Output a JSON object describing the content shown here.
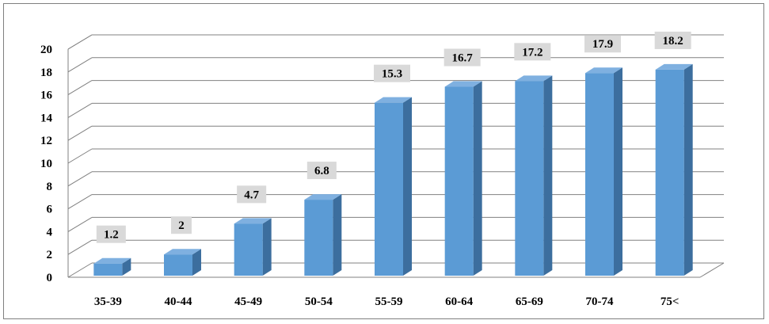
{
  "chart_data": {
    "type": "bar",
    "style": "3d-column",
    "categories": [
      "35-39",
      "40-44",
      "45-49",
      "50-54",
      "55-59",
      "60-64",
      "65-69",
      "70-74",
      "75<"
    ],
    "values": [
      1.2,
      2,
      4.7,
      6.8,
      15.3,
      16.7,
      17.2,
      17.9,
      18.2
    ],
    "data_labels": [
      "1.2",
      "2",
      "4.7",
      "6.8",
      "15.3",
      "16.7",
      "17.2",
      "17.9",
      "18.2"
    ],
    "y_ticks": [
      "0",
      "2",
      "4",
      "6",
      "8",
      "10",
      "12",
      "14",
      "16",
      "18",
      "20"
    ],
    "ylim": [
      0,
      20
    ],
    "grid": true,
    "legend": "none",
    "colors": {
      "bar_front": "#5B9BD5",
      "bar_side": "#3C6E9E",
      "bar_top": "#7FB0E0",
      "label_bg": "#D9D9D9",
      "grid": "#808080"
    }
  }
}
